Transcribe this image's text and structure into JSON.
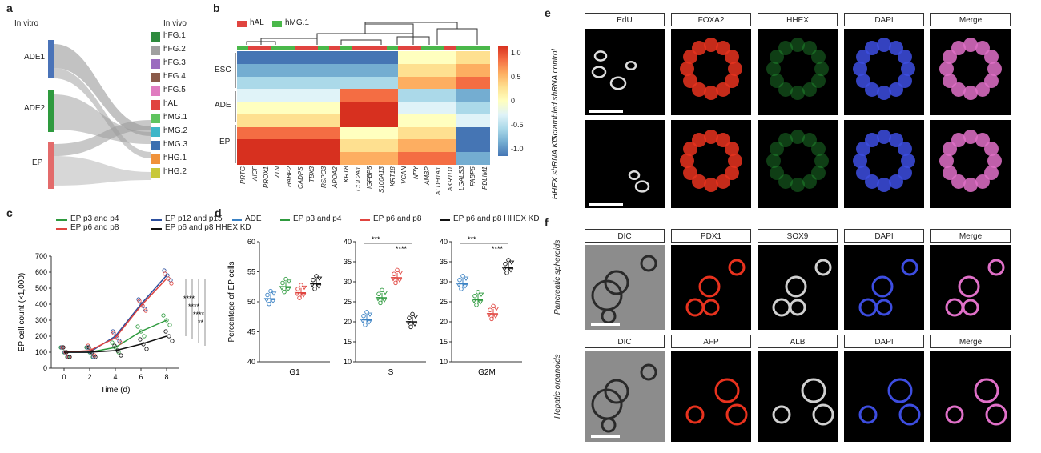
{
  "panels": {
    "a": "a",
    "b": "b",
    "c": "c",
    "d": "d",
    "e": "e",
    "f": "f"
  },
  "panel_a": {
    "title_left": "In vitro",
    "title_right": "In vivo",
    "left_nodes": [
      {
        "label": "ADE1",
        "color": "#4a73b8"
      },
      {
        "label": "ADE2",
        "color": "#2e9a3e"
      },
      {
        "label": "EP",
        "color": "#e36b6b"
      }
    ],
    "right_nodes": [
      {
        "label": "hFG.1",
        "color": "#2e8b3e"
      },
      {
        "label": "hFG.2",
        "color": "#a0a0a0"
      },
      {
        "label": "hFG.3",
        "color": "#9b6bbf"
      },
      {
        "label": "hFG.4",
        "color": "#8b5a4a"
      },
      {
        "label": "hFG.5",
        "color": "#e07cc0"
      },
      {
        "label": "hAL",
        "color": "#e0443f"
      },
      {
        "label": "hMG.1",
        "color": "#5fc45f"
      },
      {
        "label": "hMG.2",
        "color": "#3fb6c8"
      },
      {
        "label": "hMG.3",
        "color": "#3b6fb0"
      },
      {
        "label": "hHG.1",
        "color": "#f0923a"
      },
      {
        "label": "hHG.2",
        "color": "#c8c83a"
      }
    ]
  },
  "panel_b": {
    "legend": [
      {
        "label": "hAL",
        "color": "#e0443f"
      },
      {
        "label": "hMG.1",
        "color": "#4ab84a"
      }
    ],
    "row_groups": [
      "ESC",
      "ADE",
      "EP"
    ],
    "genes": [
      "PRTG",
      "AICF",
      "PROX1",
      "VTN",
      "HABP2",
      "CADPS",
      "TBX3",
      "RSPO3",
      "APOA2",
      "KRT8",
      "COL2A1",
      "IGFBP5",
      "S100A13",
      "KRT18",
      "VCAN",
      "NPY",
      "AMBP",
      "ALDH1A1",
      "AKR1D1",
      "LGALS3",
      "FABP5",
      "PDLIM1"
    ],
    "colorbar_ticks": [
      "1.0",
      "0.5",
      "0",
      "-0.5",
      "-1.0"
    ]
  },
  "panel_c": {
    "chart_data": {
      "type": "line",
      "xlabel": "Time (d)",
      "ylabel": "EP cell count (×1,000)",
      "x": [
        0,
        2,
        4,
        6,
        8
      ],
      "xlim": [
        -1,
        9
      ],
      "ylim": [
        0,
        700
      ],
      "x_ticks": [
        "0",
        "2",
        "4",
        "6",
        "8"
      ],
      "y_ticks": [
        "0",
        "100",
        "200",
        "300",
        "400",
        "500",
        "600",
        "700"
      ],
      "series": [
        {
          "name": "EP p3 and p4",
          "color": "#2e9a3e",
          "values": [
            100,
            100,
            130,
            230,
            300
          ]
        },
        {
          "name": "EP p12 and p15",
          "color": "#2c4f9e",
          "values": [
            100,
            100,
            200,
            400,
            580
          ]
        },
        {
          "name": "EP p6 and p8",
          "color": "#e0443f",
          "values": [
            100,
            110,
            190,
            390,
            560
          ]
        },
        {
          "name": "EP p6 and p8 HHEX KD",
          "color": "#111111",
          "values": [
            100,
            100,
            110,
            150,
            200
          ]
        }
      ]
    }
  },
  "panel_d": {
    "legend": [
      {
        "label": "ADE",
        "color": "#3b82c4"
      },
      {
        "label": "EP p3 and p4",
        "color": "#2e9a3e"
      },
      {
        "label": "EP p6 and p8",
        "color": "#e0443f"
      },
      {
        "label": "EP p6 and p8 HHEX KD",
        "color": "#111111"
      }
    ],
    "ylabel": "Percentage of EP cells",
    "chart_data": [
      {
        "type": "scatter",
        "xlabel": "G1",
        "ylim": [
          40,
          60
        ],
        "y_ticks": [
          "40",
          "45",
          "50",
          "55",
          "60"
        ],
        "means": [
          50.5,
          52.5,
          51.5,
          53
        ]
      },
      {
        "type": "scatter",
        "xlabel": "S",
        "ylim": [
          10,
          40
        ],
        "y_ticks": [
          "10",
          "15",
          "20",
          "25",
          "30",
          "35",
          "40"
        ],
        "means": [
          20.5,
          26,
          31,
          20
        ]
      },
      {
        "type": "scatter",
        "xlabel": "G2M",
        "ylim": [
          10,
          40
        ],
        "y_ticks": [
          "10",
          "15",
          "20",
          "25",
          "30",
          "35",
          "40"
        ],
        "means": [
          29.5,
          25.5,
          22,
          33.5
        ]
      }
    ]
  },
  "panel_e": {
    "headers": [
      "EdU",
      "FOXA2",
      "HHEX",
      "DAPI",
      "Merge"
    ],
    "rows": [
      "Scrambled shRNA control",
      "HHEX shRNA KD"
    ]
  },
  "panel_f": {
    "group1": {
      "headers": [
        "DIC",
        "PDX1",
        "SOX9",
        "DAPI",
        "Merge"
      ],
      "row": "Pancreatic spheroids"
    },
    "group2": {
      "headers": [
        "DIC",
        "AFP",
        "ALB",
        "DAPI",
        "Merge"
      ],
      "row": "Hepatic organoids"
    }
  }
}
